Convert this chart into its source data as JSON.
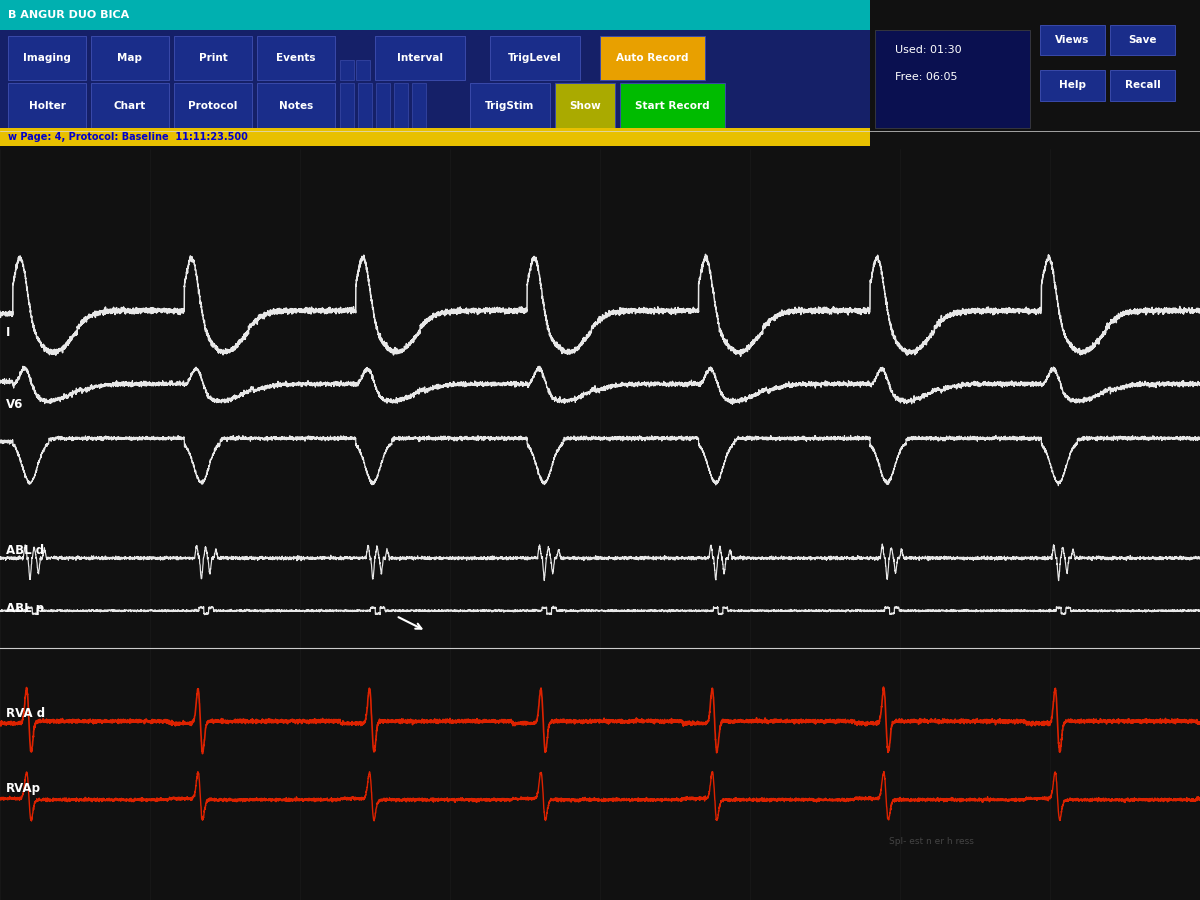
{
  "bg_color": "#080808",
  "monitor_bezel": "#1a1a1a",
  "toolbar_bg": "#1e2d8a",
  "teal_bar_color": "#00b8b8",
  "yellow_bar_color": "#e8b800",
  "ecg_color_white": "#e8e8e8",
  "ecg_color_red": "#dd2200",
  "label_color": "#ffffff",
  "note_text": "Spl- est n er h ress",
  "note_bg": "#e8e8e0",
  "used_time": "Used: 01:30",
  "free_time": "Free: 06:05",
  "page_info": "w Page: 4, Protocol: Baseline  11:11:23.500",
  "header_text": "B ANGUR DUO BICA",
  "views_save": [
    "Views",
    "Save"
  ],
  "help_recall": [
    "Help",
    "Recall"
  ],
  "white_separator_color": "#cccccc"
}
